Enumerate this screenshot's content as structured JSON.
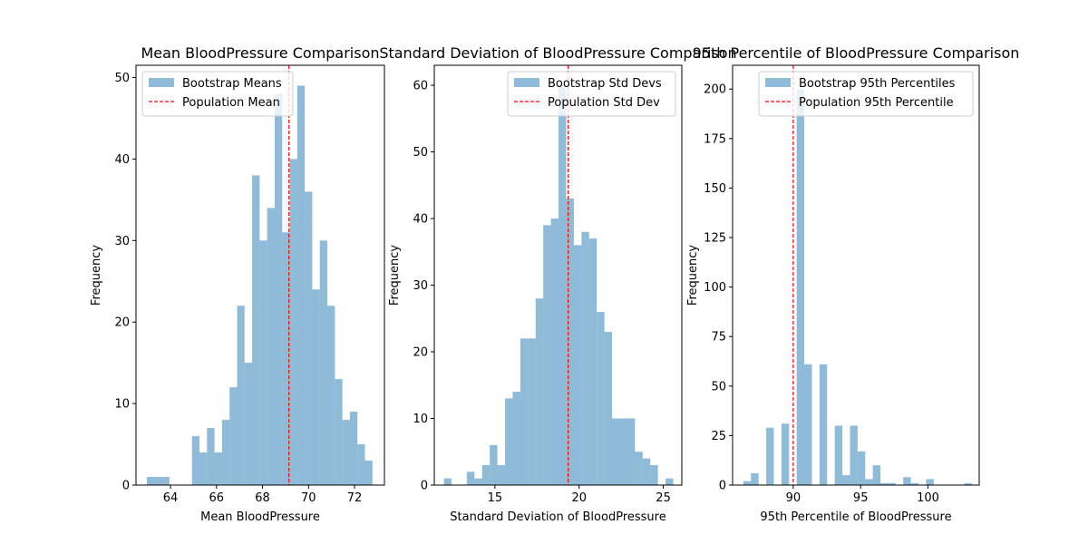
{
  "colors": {
    "bar": "#1f77b4",
    "bar_alpha": 0.5,
    "ref_line": "#ff0000"
  },
  "chart_data": [
    {
      "type": "bar",
      "title": "Mean BloodPressure Comparison",
      "xlabel": "Mean BloodPressure",
      "ylabel": "Frequency",
      "xlim": [
        62.5,
        73.3
      ],
      "ylim": [
        0,
        51.5
      ],
      "xticks": [
        64,
        66,
        68,
        70,
        72
      ],
      "yticks": [
        0,
        10,
        20,
        30,
        40,
        50
      ],
      "bins": {
        "start": 62.97,
        "width": 0.327,
        "counts": [
          1,
          1,
          1,
          0,
          0,
          0,
          6,
          4,
          7,
          4,
          8,
          12,
          22,
          15,
          38,
          30,
          34,
          48,
          31,
          40,
          49,
          36,
          24,
          30,
          22,
          13,
          8,
          9,
          5,
          3
        ]
      },
      "reference": {
        "name": "Population Mean",
        "value": 69.15
      },
      "legend": {
        "position": "top-left",
        "entries": [
          "Bootstrap Means",
          "Population Mean"
        ]
      }
    },
    {
      "type": "bar",
      "title": "Standard Deviation of BloodPressure Comparison",
      "xlabel": "Standard Deviation of BloodPressure",
      "ylabel": "Frequency",
      "xlim": [
        11.4,
        26.1
      ],
      "ylim": [
        0,
        63
      ],
      "xticks": [
        15,
        20,
        25
      ],
      "yticks": [
        0,
        10,
        20,
        30,
        40,
        50,
        60
      ],
      "bins": {
        "start": 11.97,
        "width": 0.454,
        "counts": [
          1,
          0,
          0,
          2,
          1,
          3,
          6,
          3,
          13,
          14,
          22,
          22,
          28,
          39,
          40,
          60,
          43,
          36,
          38,
          37,
          26,
          23,
          10,
          10,
          10,
          5,
          4,
          3,
          0,
          1
        ]
      },
      "reference": {
        "name": "Population Std Dev",
        "value": 19.35
      },
      "legend": {
        "position": "top-right",
        "entries": [
          "Bootstrap Std Devs",
          "Population Std Dev"
        ]
      }
    },
    {
      "type": "bar",
      "title": "95th Percentile of BloodPressure Comparison",
      "xlabel": "95th Percentile of BloodPressure",
      "ylabel": "Frequency",
      "xlim": [
        85.5,
        103.8
      ],
      "ylim": [
        0,
        212
      ],
      "xticks": [
        90,
        95,
        100
      ],
      "yticks": [
        0,
        25,
        50,
        75,
        100,
        125,
        150,
        175,
        200
      ],
      "bins": {
        "start": 86.3,
        "width": 0.565,
        "counts": [
          2,
          6,
          0,
          29,
          0,
          31,
          0,
          200,
          61,
          0,
          61,
          0,
          30,
          5,
          30,
          17,
          3,
          10,
          1,
          1,
          0,
          4,
          1,
          0,
          3,
          0,
          0,
          0,
          0,
          1
        ]
      },
      "reference": {
        "name": "Population 95th Percentile",
        "value": 90.0
      },
      "legend": {
        "position": "top-right",
        "entries": [
          "Bootstrap 95th Percentiles",
          "Population 95th Percentile"
        ]
      }
    }
  ]
}
